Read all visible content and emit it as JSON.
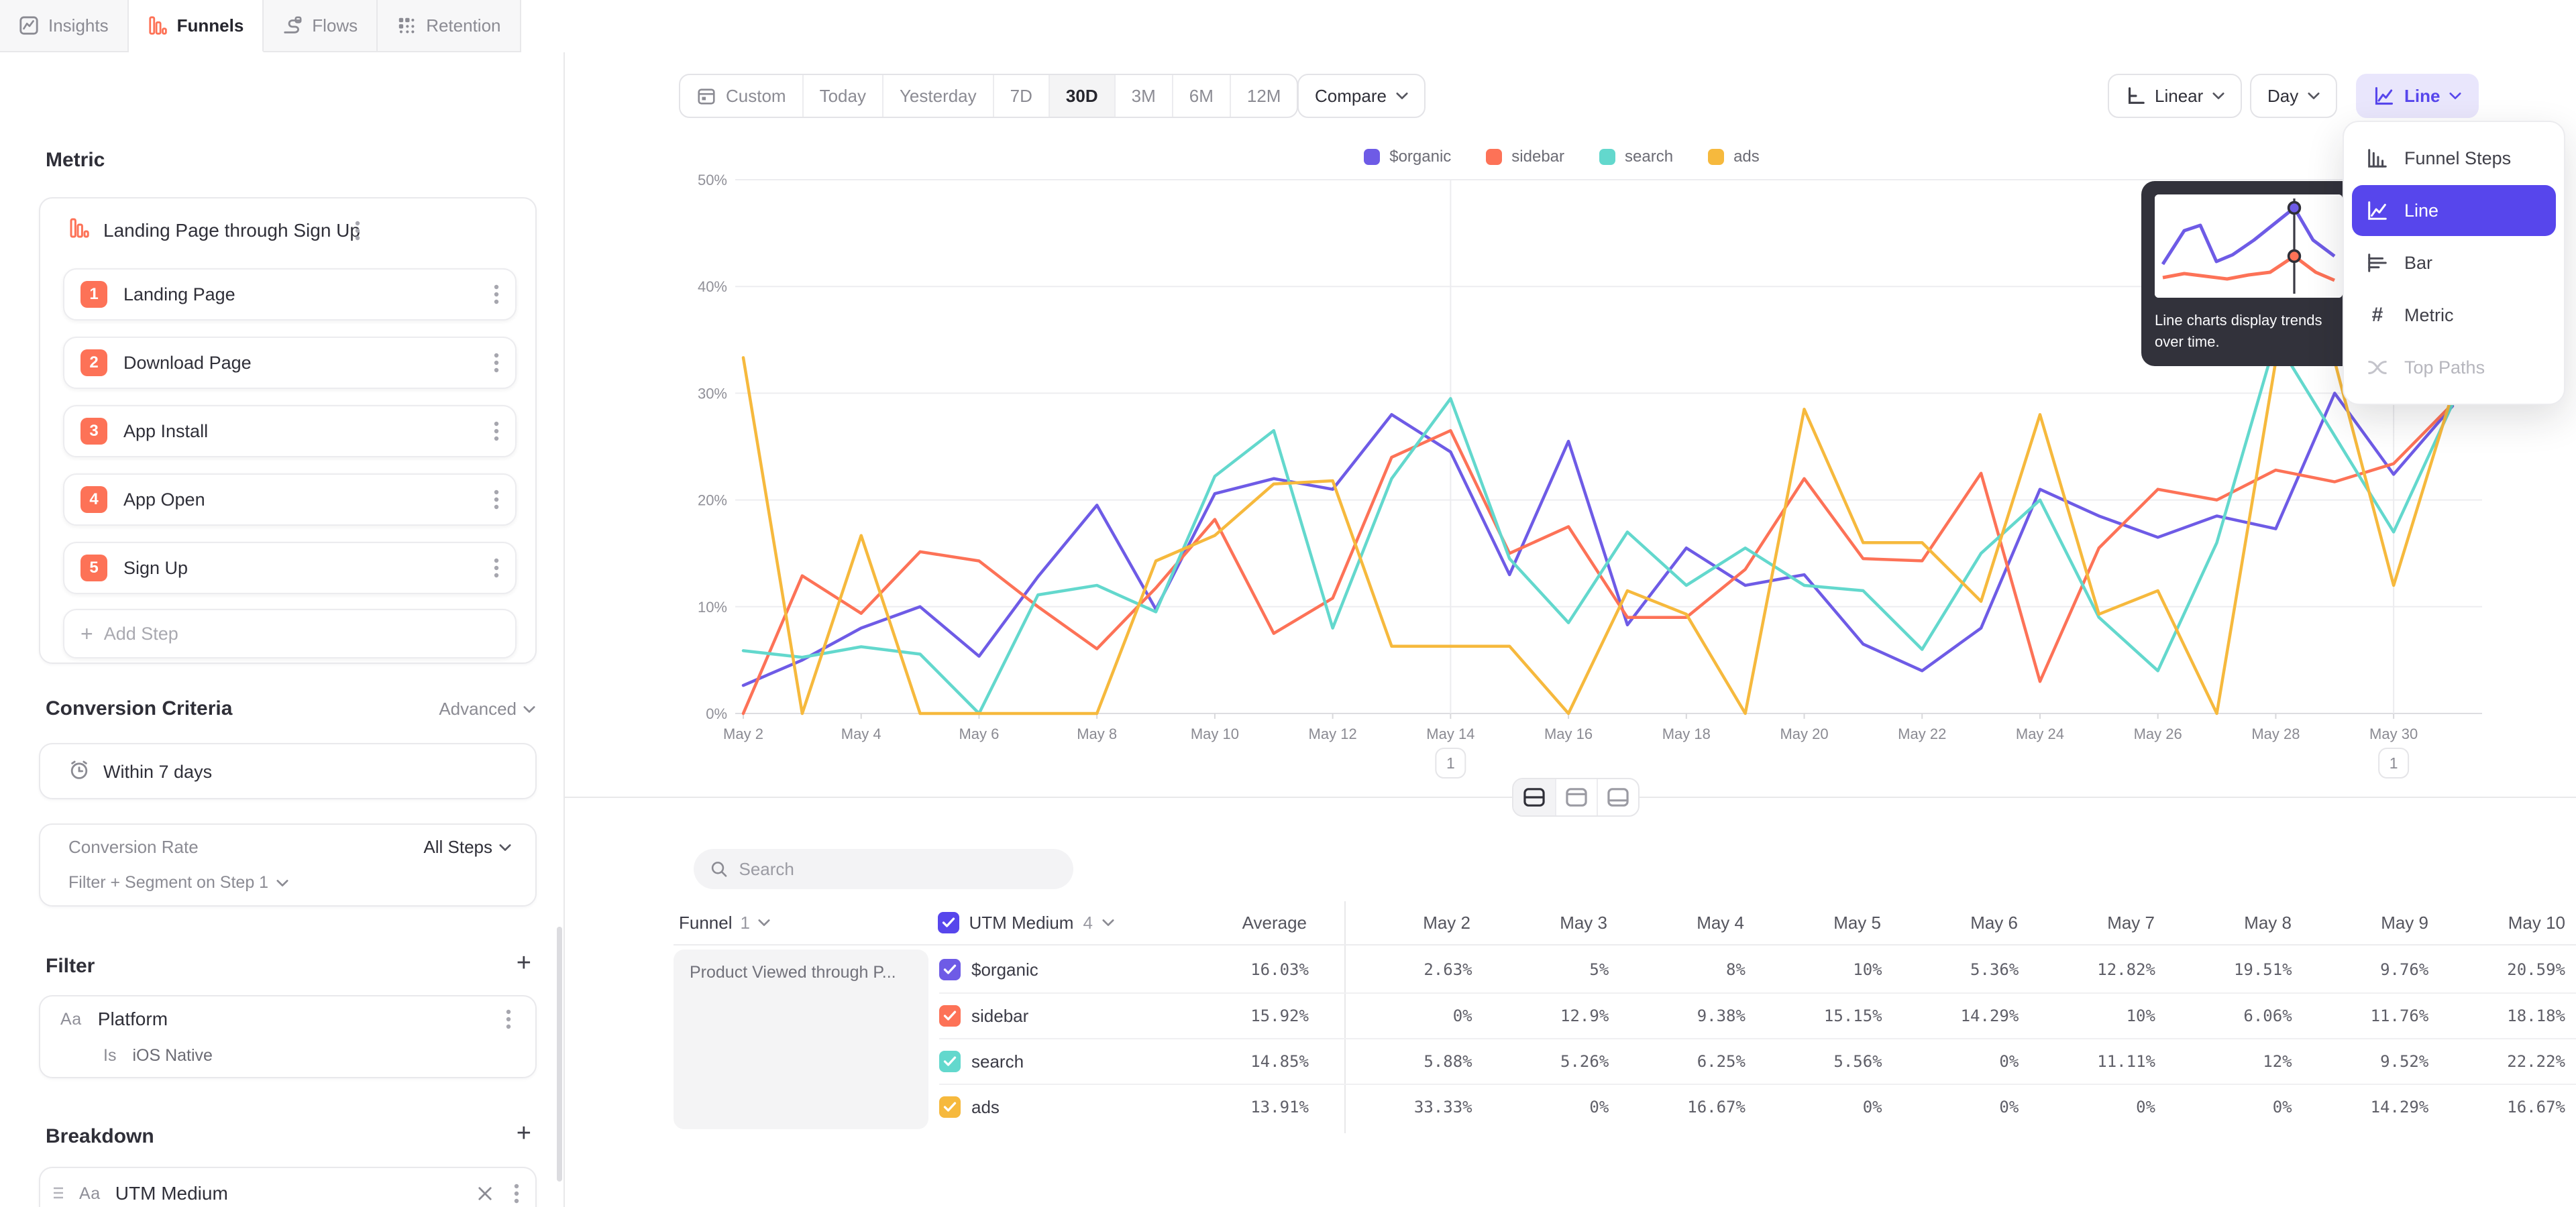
{
  "tabs": [
    {
      "label": "Insights",
      "active": false
    },
    {
      "label": "Funnels",
      "active": true
    },
    {
      "label": "Flows",
      "active": false
    },
    {
      "label": "Retention",
      "active": false
    }
  ],
  "sidebar": {
    "metric_heading": "Metric",
    "metric_title": "Landing Page through Sign Up",
    "steps": [
      {
        "num": "1",
        "label": "Landing Page"
      },
      {
        "num": "2",
        "label": "Download Page"
      },
      {
        "num": "3",
        "label": "App Install"
      },
      {
        "num": "4",
        "label": "App Open"
      },
      {
        "num": "5",
        "label": "Sign Up"
      }
    ],
    "add_step": "Add Step",
    "conversion_heading": "Conversion Criteria",
    "advanced_label": "Advanced",
    "window_label": "Within 7 days",
    "conversion_rate_label": "Conversion Rate",
    "conversion_rate_value": "All Steps",
    "filter_segment_label": "Filter + Segment on Step 1",
    "filter_heading": "Filter",
    "filter_type_badge": "Aa",
    "filter_property": "Platform",
    "filter_operator": "Is",
    "filter_value": "iOS Native",
    "breakdown_heading": "Breakdown",
    "breakdown_type_badge": "Aa",
    "breakdown_property": "UTM Medium"
  },
  "toolbar": {
    "ranges": [
      "Custom",
      "Today",
      "Yesterday",
      "7D",
      "30D",
      "3M",
      "6M",
      "12M"
    ],
    "selected_range": "30D",
    "compare_label": "Compare",
    "scale_label": "Linear",
    "granularity_label": "Day",
    "chart_type_label": "Line"
  },
  "chart_menu": {
    "items": [
      {
        "label": "Funnel Steps",
        "icon": "funnel-steps-icon",
        "selected": false,
        "disabled": false
      },
      {
        "label": "Line",
        "icon": "line-chart-icon",
        "selected": true,
        "disabled": false
      },
      {
        "label": "Bar",
        "icon": "bar-chart-icon",
        "selected": false,
        "disabled": false
      },
      {
        "label": "Metric",
        "icon": "metric-icon",
        "selected": false,
        "disabled": false
      },
      {
        "label": "Top Paths",
        "icon": "top-paths-icon",
        "selected": false,
        "disabled": true
      }
    ],
    "tooltip_text": "Line charts display trends over time.",
    "selected_color": "#5746ec"
  },
  "chart_data": {
    "type": "line",
    "title": "",
    "xlabel": "",
    "ylabel": "",
    "ylim": [
      0,
      50
    ],
    "yticks": [
      0,
      10,
      20,
      30,
      40,
      50
    ],
    "ytick_suffix": "%",
    "grid": true,
    "legend_position": "top-center",
    "x": [
      "May 2",
      "May 3",
      "May 4",
      "May 5",
      "May 6",
      "May 7",
      "May 8",
      "May 9",
      "May 10",
      "May 11",
      "May 12",
      "May 13",
      "May 14",
      "May 15",
      "May 16",
      "May 17",
      "May 18",
      "May 19",
      "May 20",
      "May 21",
      "May 22",
      "May 23",
      "May 24",
      "May 25",
      "May 26",
      "May 27",
      "May 28",
      "May 29",
      "May 30",
      "May 31"
    ],
    "tick_every": 2,
    "annotations": [
      {
        "x": "May 14",
        "label": "1"
      },
      {
        "x": "May 30",
        "label": "1"
      }
    ],
    "series": [
      {
        "name": "$organic",
        "color": "#6e5be6",
        "values": [
          2.63,
          5,
          8,
          10,
          5.36,
          12.82,
          19.51,
          9.76,
          20.59,
          22,
          21,
          28,
          24.5,
          13,
          25.5,
          8.3,
          15.5,
          12,
          13,
          6.5,
          4,
          8,
          21,
          18.5,
          16.5,
          18.5,
          17.3,
          30,
          22.4,
          28.8
        ]
      },
      {
        "name": "sidebar",
        "color": "#fd7257",
        "values": [
          0,
          12.9,
          9.38,
          15.15,
          14.29,
          10,
          6.06,
          11.76,
          18.18,
          7.5,
          10.8,
          24,
          26.5,
          15,
          17.5,
          9,
          9,
          13.5,
          22,
          14.5,
          14.3,
          22.5,
          3,
          15.5,
          21,
          20,
          22.8,
          21.7,
          23.4,
          29
        ]
      },
      {
        "name": "search",
        "color": "#63d8cd",
        "values": [
          5.88,
          5.26,
          6.25,
          5.56,
          0,
          11.11,
          12,
          9.52,
          22.22,
          26.5,
          8,
          22,
          29.5,
          14.5,
          8.5,
          17,
          12,
          15.5,
          12,
          11.5,
          6,
          15,
          20,
          9,
          4,
          16,
          35,
          26,
          17,
          29
        ]
      },
      {
        "name": "ads",
        "color": "#f6b93d",
        "values": [
          33.33,
          0,
          16.67,
          0,
          0,
          0,
          0,
          14.29,
          16.67,
          21.5,
          21.8,
          6.3,
          6.3,
          6.3,
          0,
          11.5,
          9.3,
          0,
          28.5,
          16,
          16,
          10.5,
          28,
          9.3,
          11.5,
          0,
          33,
          33,
          12,
          30
        ]
      }
    ]
  },
  "table": {
    "search_placeholder": "Search",
    "funnel_label": "Funnel",
    "funnel_count": "1",
    "breakdown_label": "UTM Medium",
    "breakdown_count": "4",
    "average_label": "Average",
    "date_columns": [
      "May 2",
      "May 3",
      "May 4",
      "May 5",
      "May 6",
      "May 7",
      "May 8",
      "May 9",
      "May 10"
    ],
    "funnel_name": "Product Viewed through P...",
    "rows": [
      {
        "name": "$organic",
        "color": "#6e5be6",
        "average": "16.03%",
        "values": [
          "2.63%",
          "5%",
          "8%",
          "10%",
          "5.36%",
          "12.82%",
          "19.51%",
          "9.76%",
          "20.59%"
        ]
      },
      {
        "name": "sidebar",
        "color": "#fd7257",
        "average": "15.92%",
        "values": [
          "0%",
          "12.9%",
          "9.38%",
          "15.15%",
          "14.29%",
          "10%",
          "6.06%",
          "11.76%",
          "18.18%"
        ]
      },
      {
        "name": "search",
        "color": "#63d8cd",
        "average": "14.85%",
        "values": [
          "5.88%",
          "5.26%",
          "6.25%",
          "5.56%",
          "0%",
          "11.11%",
          "12%",
          "9.52%",
          "22.22%"
        ]
      },
      {
        "name": "ads",
        "color": "#f6b93d",
        "average": "13.91%",
        "values": [
          "33.33%",
          "0%",
          "16.67%",
          "0%",
          "0%",
          "0%",
          "0%",
          "14.29%",
          "16.67%"
        ]
      }
    ]
  }
}
